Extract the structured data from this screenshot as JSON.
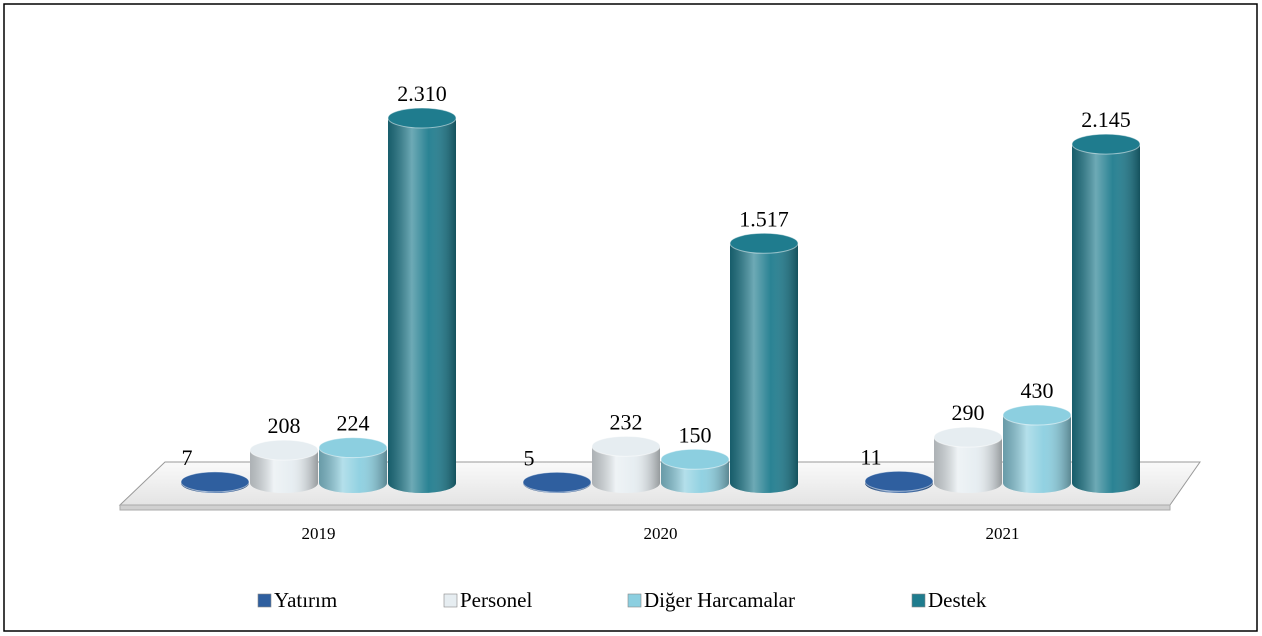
{
  "chart_data": {
    "type": "bar3d",
    "categories": [
      "2019",
      "2020",
      "2021"
    ],
    "series": [
      {
        "name": "Yatırım",
        "color": "#2f5f9f",
        "values": [
          7,
          5,
          11
        ]
      },
      {
        "name": "Personel",
        "color": "#e6edf1",
        "values": [
          208,
          232,
          290
        ]
      },
      {
        "name": "Diğer Harcamalar",
        "color": "#8ccfe0",
        "values": [
          224,
          150,
          430
        ]
      },
      {
        "name": "Destek",
        "color": "#1f7c8e",
        "values": [
          2310,
          1517,
          2145
        ],
        "value_labels": [
          "2.310",
          "1.517",
          "2.145"
        ]
      }
    ],
    "legend": "bottom"
  }
}
